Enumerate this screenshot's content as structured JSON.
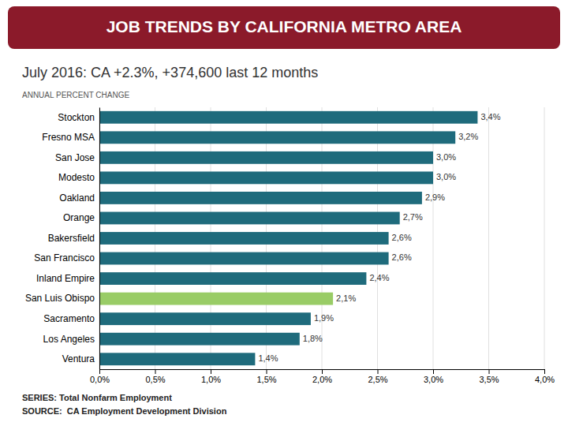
{
  "chart_data": {
    "type": "bar",
    "orientation": "horizontal",
    "title": "JOB TRENDS BY CALIFORNIA METRO AREA",
    "subtitle": "July 2016: CA +2.3%, +374,600 last 12 months",
    "xlabel": "ANNUAL PERCENT CHANGE",
    "annotations": [
      "SERIES: Total Nonfarm Employment",
      "SOURCE:  CA Employment Development Division"
    ],
    "categories": [
      "Ventura",
      "Los Angeles",
      "Sacramento",
      "San Luis Obispo",
      "Inland Empire",
      "San Francisco",
      "Bakersfield",
      "Orange",
      "Oakland",
      "Modesto",
      "San Jose",
      "Fresno MSA",
      "Stockton"
    ],
    "values": [
      1.4,
      1.8,
      1.9,
      2.1,
      2.4,
      2.6,
      2.6,
      2.7,
      2.9,
      3.0,
      3.0,
      3.2,
      3.4
    ],
    "value_labels": [
      "1,4%",
      "1,8%",
      "1,9%",
      "2,1%",
      "2,4%",
      "2,6%",
      "2,6%",
      "2,7%",
      "2,9%",
      "3,0%",
      "3,0%",
      "3,2%",
      "3,4%"
    ],
    "colors": [
      "#1f6b7c",
      "#1f6b7c",
      "#1f6b7c",
      "#99cc66",
      "#1f6b7c",
      "#1f6b7c",
      "#1f6b7c",
      "#1f6b7c",
      "#1f6b7c",
      "#1f6b7c",
      "#1f6b7c",
      "#1f6b7c",
      "#1f6b7c"
    ],
    "xlim": [
      0,
      4.0
    ],
    "xticks": [
      {
        "value": 0.0,
        "label": "0,0%"
      },
      {
        "value": 0.5,
        "label": "0,5%"
      },
      {
        "value": 1.0,
        "label": "1,0%"
      },
      {
        "value": 1.5,
        "label": "1,5%"
      },
      {
        "value": 2.0,
        "label": "2,0%"
      },
      {
        "value": 2.5,
        "label": "2,5%"
      },
      {
        "value": 3.0,
        "label": "3,0%"
      },
      {
        "value": 3.5,
        "label": "3,5%"
      },
      {
        "value": 4.0,
        "label": "4,0%"
      }
    ],
    "grid": true,
    "data_labels": true
  }
}
